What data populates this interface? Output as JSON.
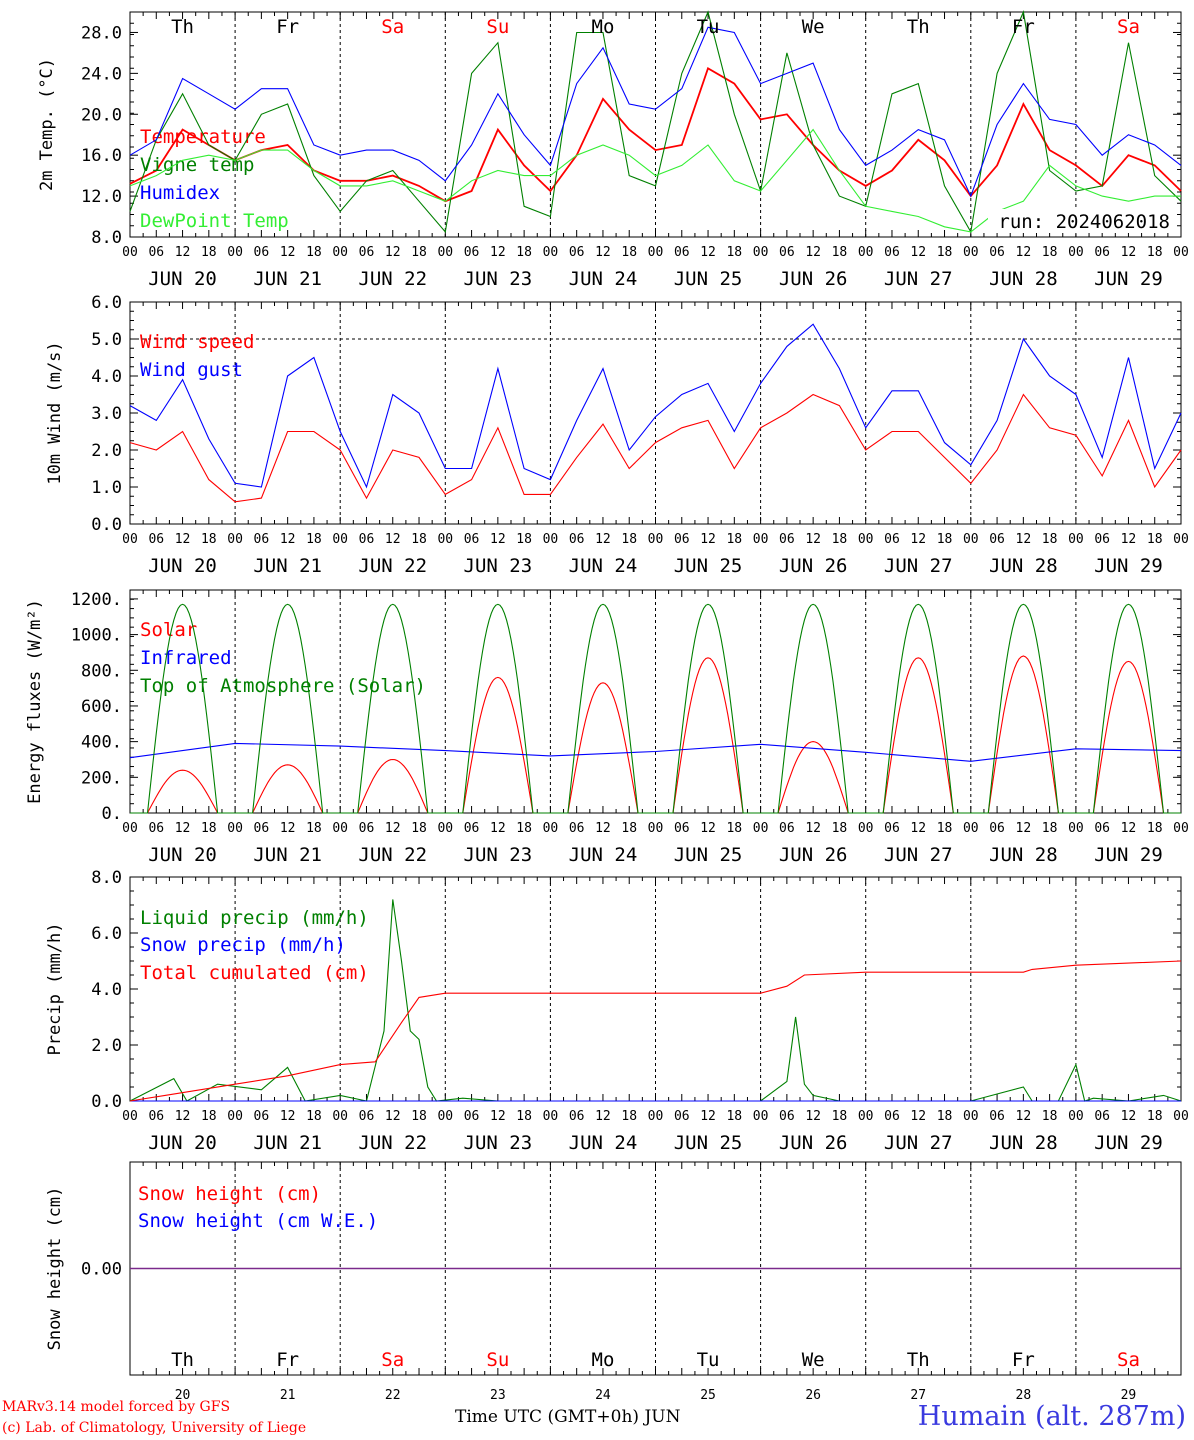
{
  "meteogram": {
    "run_label": "run: 2024062018",
    "station": "Humain (alt. 287m)",
    "credits": [
      "MARv3.14 model forced by GFS",
      "(c) Lab. of Climatology, University of Liege"
    ],
    "xaxis_title": "Time UTC (GMT+0h)",
    "xaxis_month": "JUN",
    "hour_ticks": [
      "00",
      "06",
      "12",
      "18"
    ],
    "days": [
      "JUN 20",
      "JUN 21",
      "JUN 22",
      "JUN 23",
      "JUN 24",
      "JUN 25",
      "JUN 26",
      "JUN 27",
      "JUN 28",
      "JUN 29"
    ],
    "day_numbers": [
      "20",
      "21",
      "22",
      "23",
      "24",
      "25",
      "26",
      "27",
      "28",
      "29"
    ],
    "weekdays": [
      "Th",
      "Fr",
      "Sa",
      "Su",
      "Mo",
      "Tu",
      "We",
      "Th",
      "Fr",
      "Sa"
    ],
    "weekend_color": "#ff0000",
    "weekday_color": "#000000"
  },
  "chart_data": [
    {
      "type": "line",
      "ylabel": "2m Temp. (°C)",
      "ylim": [
        8,
        30
      ],
      "yticks": [
        "8.0",
        "12.0",
        "16.0",
        "20.0",
        "24.0",
        "28.0"
      ],
      "x_unit": "hours since JUN 20 00 UTC",
      "grid": "vertical dashed at day boundaries",
      "legend": "left",
      "series": [
        {
          "name": "Temperature",
          "color": "#ff0000",
          "x": [
            0,
            6,
            12,
            18,
            24,
            30,
            36,
            42,
            48,
            54,
            60,
            66,
            72,
            78,
            84,
            90,
            96,
            102,
            108,
            114,
            120,
            126,
            132,
            138,
            144,
            150,
            156,
            162,
            168,
            174,
            180,
            186,
            192,
            198,
            204,
            210,
            216,
            222,
            228,
            234,
            240
          ],
          "values": [
            13.2,
            14.5,
            18.5,
            17.0,
            15.5,
            16.5,
            17.0,
            14.5,
            13.5,
            13.5,
            14.0,
            13.0,
            11.5,
            12.5,
            18.5,
            15.0,
            12.5,
            16.0,
            21.5,
            18.5,
            16.5,
            17.0,
            24.5,
            23.0,
            19.5,
            20.0,
            17.0,
            14.5,
            13.0,
            14.5,
            17.5,
            15.5,
            12.0,
            15.0,
            21.0,
            16.5,
            15.0,
            13.0,
            16.0,
            15.0,
            12.5
          ]
        },
        {
          "name": "Vigne temp",
          "color": "#008000",
          "x": [
            0,
            6,
            12,
            18,
            24,
            30,
            36,
            42,
            48,
            54,
            60,
            66,
            72,
            78,
            84,
            90,
            96,
            102,
            108,
            114,
            120,
            126,
            132,
            138,
            144,
            150,
            156,
            162,
            168,
            174,
            180,
            186,
            192,
            198,
            204,
            210,
            216,
            222,
            228,
            234,
            240
          ],
          "values": [
            10.5,
            17.5,
            22.0,
            17.0,
            15.5,
            20.0,
            21.0,
            14.0,
            10.5,
            13.5,
            14.5,
            11.5,
            8.5,
            24.0,
            27.0,
            11.0,
            10.0,
            28.0,
            28.0,
            14.0,
            13.0,
            24.0,
            30.0,
            20.0,
            12.5,
            26.0,
            17.0,
            12.0,
            11.0,
            22.0,
            23.0,
            13.0,
            8.5,
            24.0,
            30.0,
            14.5,
            12.5,
            13.0,
            27.0,
            14.0,
            11.5
          ]
        },
        {
          "name": "Humidex",
          "color": "#0000ff",
          "x": [
            0,
            6,
            12,
            18,
            24,
            30,
            36,
            42,
            48,
            54,
            60,
            66,
            72,
            78,
            84,
            90,
            96,
            102,
            108,
            114,
            120,
            126,
            132,
            138,
            144,
            150,
            156,
            162,
            168,
            174,
            180,
            186,
            192,
            198,
            204,
            210,
            216,
            222,
            228,
            234,
            240
          ],
          "values": [
            16.0,
            17.5,
            23.5,
            22.0,
            20.5,
            22.5,
            22.5,
            17.0,
            16.0,
            16.5,
            16.5,
            15.5,
            13.5,
            17.0,
            22.0,
            18.0,
            15.0,
            23.0,
            26.5,
            21.0,
            20.5,
            22.5,
            28.5,
            28.0,
            23.0,
            24.0,
            25.0,
            18.5,
            15.0,
            16.5,
            18.5,
            17.5,
            12.0,
            19.0,
            23.0,
            19.5,
            19.0,
            16.0,
            18.0,
            17.0,
            15.0
          ]
        },
        {
          "name": "DewPoint Temp",
          "color": "#33ee33",
          "x": [
            0,
            6,
            12,
            18,
            24,
            30,
            36,
            42,
            48,
            54,
            60,
            66,
            72,
            78,
            84,
            90,
            96,
            102,
            108,
            114,
            120,
            126,
            132,
            138,
            144,
            150,
            156,
            162,
            168,
            174,
            180,
            186,
            192,
            198,
            204,
            210,
            216,
            222,
            228,
            234,
            240
          ],
          "values": [
            13.0,
            14.0,
            15.5,
            16.0,
            15.5,
            16.5,
            16.5,
            14.5,
            13.0,
            13.0,
            13.5,
            12.5,
            11.5,
            13.5,
            14.5,
            14.0,
            14.0,
            16.0,
            17.0,
            16.0,
            14.0,
            15.0,
            17.0,
            13.5,
            12.5,
            15.5,
            18.5,
            14.5,
            11.0,
            10.5,
            10.0,
            9.0,
            8.5,
            10.5,
            11.5,
            15.0,
            13.0,
            12.0,
            11.5,
            12.0,
            12.0
          ]
        }
      ]
    },
    {
      "type": "line",
      "ylabel": "10m Wind (m/s)",
      "ylim": [
        0,
        6
      ],
      "yticks": [
        "0.0",
        "1.0",
        "2.0",
        "3.0",
        "4.0",
        "5.0",
        "6.0"
      ],
      "grid": "horizontal dashed at 5.0",
      "legend": "left",
      "series": [
        {
          "name": "Wind speed",
          "color": "#ff0000",
          "x": [
            0,
            6,
            12,
            18,
            24,
            30,
            36,
            42,
            48,
            54,
            60,
            66,
            72,
            78,
            84,
            90,
            96,
            102,
            108,
            114,
            120,
            126,
            132,
            138,
            144,
            150,
            156,
            162,
            168,
            174,
            180,
            186,
            192,
            198,
            204,
            210,
            216,
            222,
            228,
            234,
            240
          ],
          "values": [
            2.2,
            2.0,
            2.5,
            1.2,
            0.6,
            0.7,
            2.5,
            2.5,
            2.0,
            0.7,
            2.0,
            1.8,
            0.8,
            1.2,
            2.6,
            0.8,
            0.8,
            1.8,
            2.7,
            1.5,
            2.2,
            2.6,
            2.8,
            1.5,
            2.6,
            3.0,
            3.5,
            3.2,
            2.0,
            2.5,
            2.5,
            1.8,
            1.1,
            2.0,
            3.5,
            2.6,
            2.4,
            1.3,
            2.8,
            1.0,
            2.0
          ]
        },
        {
          "name": "Wind gust",
          "color": "#0000ff",
          "x": [
            0,
            6,
            12,
            18,
            24,
            30,
            36,
            42,
            48,
            54,
            60,
            66,
            72,
            78,
            84,
            90,
            96,
            102,
            108,
            114,
            120,
            126,
            132,
            138,
            144,
            150,
            156,
            162,
            168,
            174,
            180,
            186,
            192,
            198,
            204,
            210,
            216,
            222,
            228,
            234,
            240
          ],
          "values": [
            3.2,
            2.8,
            3.9,
            2.3,
            1.1,
            1.0,
            4.0,
            4.5,
            2.5,
            1.0,
            3.5,
            3.0,
            1.5,
            1.5,
            4.2,
            1.5,
            1.2,
            2.8,
            4.2,
            2.0,
            2.9,
            3.5,
            3.8,
            2.5,
            3.8,
            4.8,
            5.4,
            4.2,
            2.6,
            3.6,
            3.6,
            2.2,
            1.6,
            2.8,
            5.0,
            4.0,
            3.5,
            1.8,
            4.5,
            1.5,
            3.0
          ]
        }
      ]
    },
    {
      "type": "line",
      "ylabel": "Energy fluxes (W/m²)",
      "ylim": [
        0,
        1250
      ],
      "yticks": [
        "0.",
        "200.",
        "400.",
        "600.",
        "800.",
        "1000.",
        "1200."
      ],
      "legend": "left",
      "series": [
        {
          "name": "Solar",
          "color": "#ff0000",
          "daily_peak": [
            240,
            270,
            300,
            760,
            730,
            870,
            400,
            870,
            880,
            850
          ]
        },
        {
          "name": "Infrared",
          "color": "#0000ff",
          "x": [
            0,
            24,
            48,
            72,
            96,
            120,
            144,
            168,
            192,
            216,
            240
          ],
          "values": [
            310,
            390,
            375,
            350,
            320,
            345,
            385,
            340,
            290,
            360,
            350
          ]
        },
        {
          "name": "Top of Atmosphere (Solar)",
          "color": "#008000",
          "daily_peak": [
            1170,
            1170,
            1170,
            1170,
            1170,
            1170,
            1170,
            1170,
            1170,
            1170
          ]
        }
      ]
    },
    {
      "type": "line",
      "ylabel": "Precip (mm/h)",
      "ylim": [
        0,
        8
      ],
      "yticks": [
        "0.0",
        "2.0",
        "4.0",
        "6.0",
        "8.0"
      ],
      "legend": "left",
      "series": [
        {
          "name": "Liquid precip (mm/h)",
          "color": "#008000",
          "x": [
            0,
            10,
            13,
            20,
            30,
            36,
            40,
            48,
            54,
            58,
            60,
            62,
            64,
            66,
            68,
            70,
            76,
            84,
            96,
            144,
            150,
            152,
            154,
            156,
            162,
            168,
            186,
            192,
            204,
            206,
            212,
            216,
            218,
            220,
            228,
            236,
            240
          ],
          "values": [
            0,
            0.8,
            0,
            0.6,
            0.4,
            1.2,
            0,
            0.2,
            0,
            2.5,
            7.2,
            5.0,
            2.5,
            2.2,
            0.5,
            0,
            0.1,
            0,
            0,
            0,
            0.7,
            3.0,
            0.6,
            0.2,
            0,
            0,
            0,
            0,
            0.5,
            0,
            0,
            1.3,
            0,
            0.1,
            0,
            0.2,
            0
          ]
        },
        {
          "name": "Snow precip (mm/h)",
          "color": "#0000ff",
          "x": [
            0,
            240
          ],
          "values": [
            0,
            0
          ]
        },
        {
          "name": "Total cumulated (cm)",
          "color": "#ff0000",
          "x": [
            0,
            8,
            24,
            36,
            48,
            56,
            62,
            66,
            72,
            96,
            120,
            144,
            150,
            154,
            168,
            192,
            204,
            206,
            216,
            240
          ],
          "values": [
            0,
            0.2,
            0.6,
            0.9,
            1.3,
            1.4,
            2.8,
            3.7,
            3.85,
            3.85,
            3.85,
            3.85,
            4.1,
            4.5,
            4.6,
            4.6,
            4.6,
            4.7,
            4.85,
            5.0
          ]
        }
      ]
    },
    {
      "type": "line",
      "ylabel": "Snow height (cm)",
      "ylim": [
        -1,
        1
      ],
      "yticks": [
        "0.00"
      ],
      "legend": "left",
      "series": [
        {
          "name": "Snow height (cm)",
          "color": "#ff0000",
          "x": [
            0,
            240
          ],
          "values": [
            0,
            0
          ]
        },
        {
          "name": "Snow height (cm W.E.)",
          "color": "#0000ff",
          "x": [
            0,
            240
          ],
          "values": [
            0,
            0
          ]
        }
      ]
    }
  ]
}
